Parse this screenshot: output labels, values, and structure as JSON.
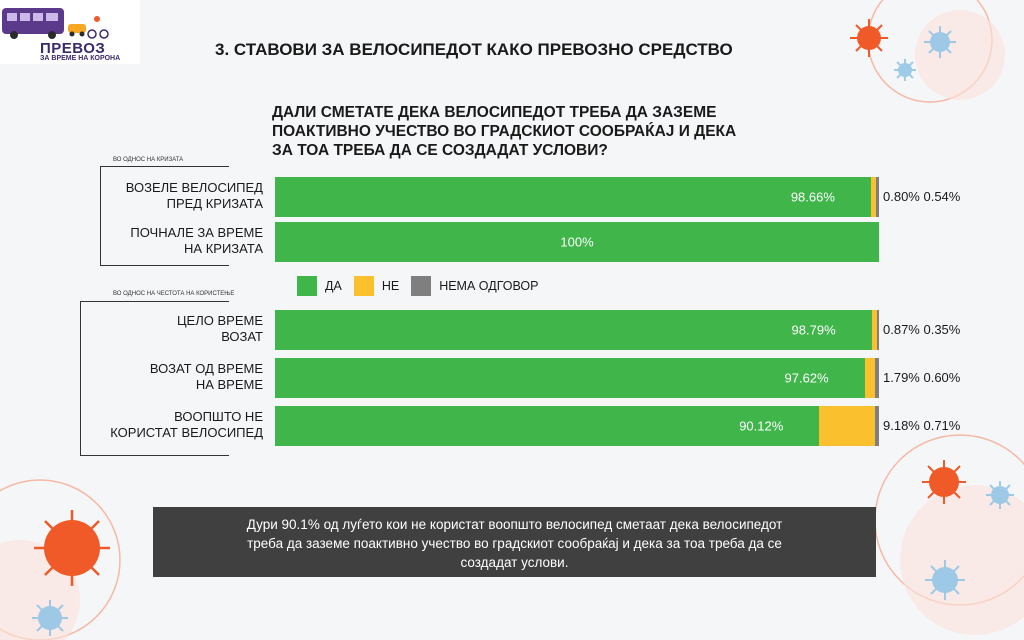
{
  "logo": {
    "title": "ПРЕВОЗ",
    "subtitle": "ЗА ВРЕМЕ НА КОРОНА"
  },
  "page_title": "3. СТАВОВИ ЗА ВЕЛОСИПЕДОТ КАКО ПРЕВОЗНО СРЕДСТВО",
  "question_lines": [
    "ДАЛИ СМЕТАТЕ ДЕКА ВЕЛОСИПЕДОТ ТРЕБА ДА ЗАЗЕМЕ",
    "ПОАКТИВНО УЧЕСТВО ВО ГРАДСКИОТ СООБРАЌАЈ И ДЕКА",
    "ЗА ТОА ТРЕБА ДА СЕ СОЗДАДАТ УСЛОВИ?"
  ],
  "groups": [
    {
      "label": "ВО ОДНОС НА КРИЗАТА"
    },
    {
      "label": "ВО ОДНОС НА ЧЕСТОТА НА КОРИСТЕЊЕ"
    }
  ],
  "legend": [
    "ДА",
    "НЕ",
    "НЕМА ОДГОВОР"
  ],
  "colors": {
    "yes": "#3fb54a",
    "no": "#fbc02d",
    "no_answer": "#7f7f7f",
    "note_bg": "#404040",
    "decor": "#f05a28"
  },
  "chart_data": {
    "type": "bar",
    "orientation": "horizontal",
    "stacked": true,
    "xlim": [
      0,
      100
    ],
    "categories": [
      [
        "ВОЗЕЛЕ ВЕЛОСИПЕД",
        "ПРЕД КРИЗАТА"
      ],
      [
        "ПОЧНАЛЕ ЗА ВРЕМЕ",
        "НА КРИЗАТА"
      ],
      [
        "ЦЕЛО ВРЕМЕ",
        "ВОЗАТ"
      ],
      [
        "ВОЗАТ ОД ВРЕМЕ",
        "НА ВРЕМЕ"
      ],
      [
        "ВООПШТО НЕ",
        "КОРИСТАТ ВЕЛОСИПЕД"
      ]
    ],
    "series": [
      {
        "name": "ДА",
        "values": [
          98.66,
          100,
          98.79,
          97.62,
          90.12
        ],
        "labels": [
          "98.66%",
          "100%",
          "98.79%",
          "97.62%",
          "90.12%"
        ]
      },
      {
        "name": "НЕ",
        "values": [
          0.8,
          0,
          0.87,
          1.79,
          9.18
        ],
        "labels": [
          "0.80%",
          "",
          "0.87%",
          "1.79%",
          "9.18%"
        ]
      },
      {
        "name": "НЕМА ОДГОВОР",
        "values": [
          0.54,
          0,
          0.35,
          0.6,
          0.71
        ],
        "labels": [
          "0.54%",
          "",
          "0.35%",
          "0.60%",
          "0.71%"
        ]
      }
    ],
    "legend_position": "middle"
  },
  "note_lines": [
    "Дури 90.1% од луѓето кои не користат воопшто велосипед сметаат дека велосипедот",
    "треба да заземе поактивно учество во градскиот сообраќај и дека за тоа треба да се",
    "создадат услови."
  ]
}
